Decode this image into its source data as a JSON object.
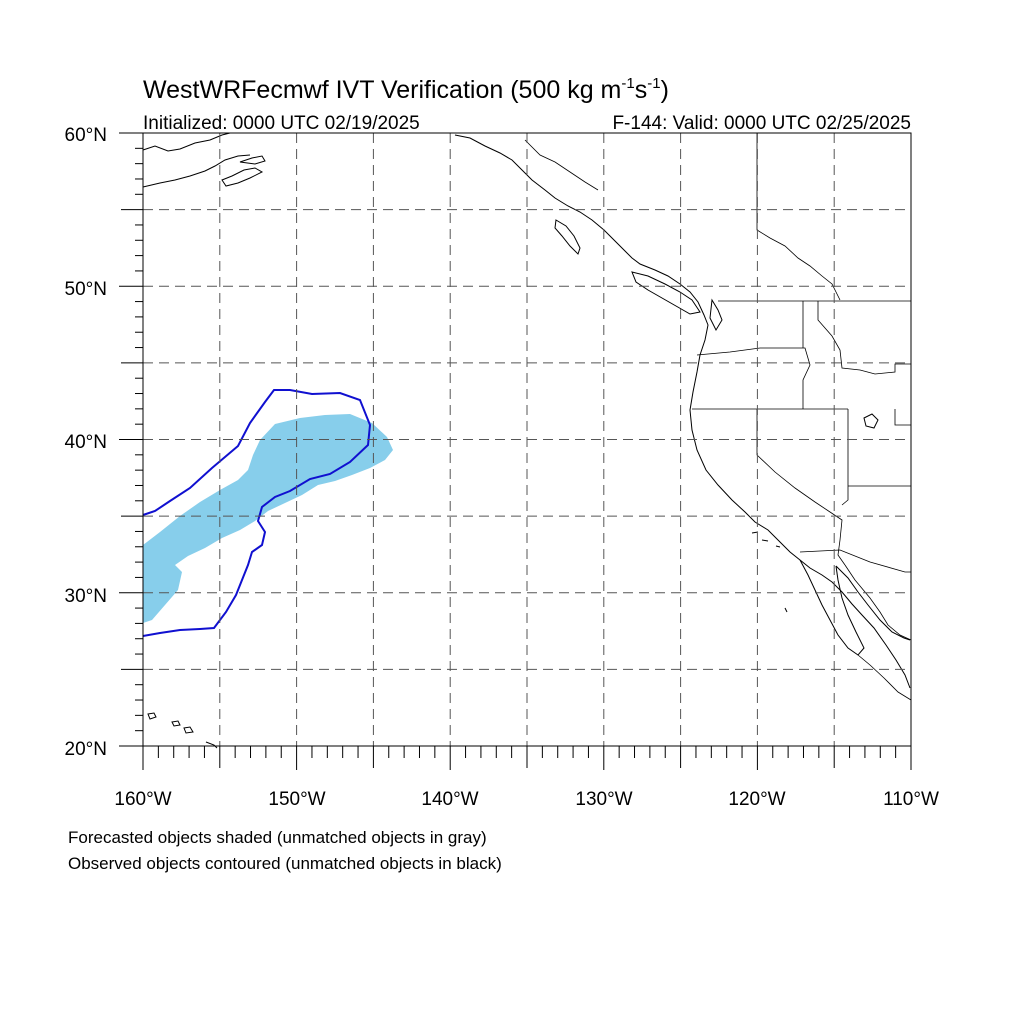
{
  "title": {
    "main": "WestWRFecmwf IVT Verification (500 kg m",
    "sup1": "-1",
    "mid": "s",
    "sup2": "-1",
    "end": ")"
  },
  "subtitle_left": "Initialized: 0000 UTC 02/19/2025",
  "subtitle_right": "F-144: Valid: 0000 UTC 02/25/2025",
  "lat_labels": [
    "60°N",
    "50°N",
    "40°N",
    "30°N",
    "20°N"
  ],
  "lon_labels": [
    "160°W",
    "150°W",
    "140°W",
    "130°W",
    "120°W",
    "110°W"
  ],
  "legend": [
    "Forecasted objects shaded (unmatched objects in gray)",
    "Observed objects contoured (unmatched objects in black)"
  ],
  "colors": {
    "forecast_fill": "#87CEEB",
    "observed_contour": "#1010D0",
    "coastline": "#000000",
    "grid": "#555555"
  },
  "map_data": {
    "projection": "cylindrical-equidistant",
    "lon_range": [
      -160,
      -110
    ],
    "lat_range": [
      20,
      60
    ],
    "grid_lon_step": 5,
    "grid_lat_step": 5,
    "grid_style": "dashed"
  }
}
